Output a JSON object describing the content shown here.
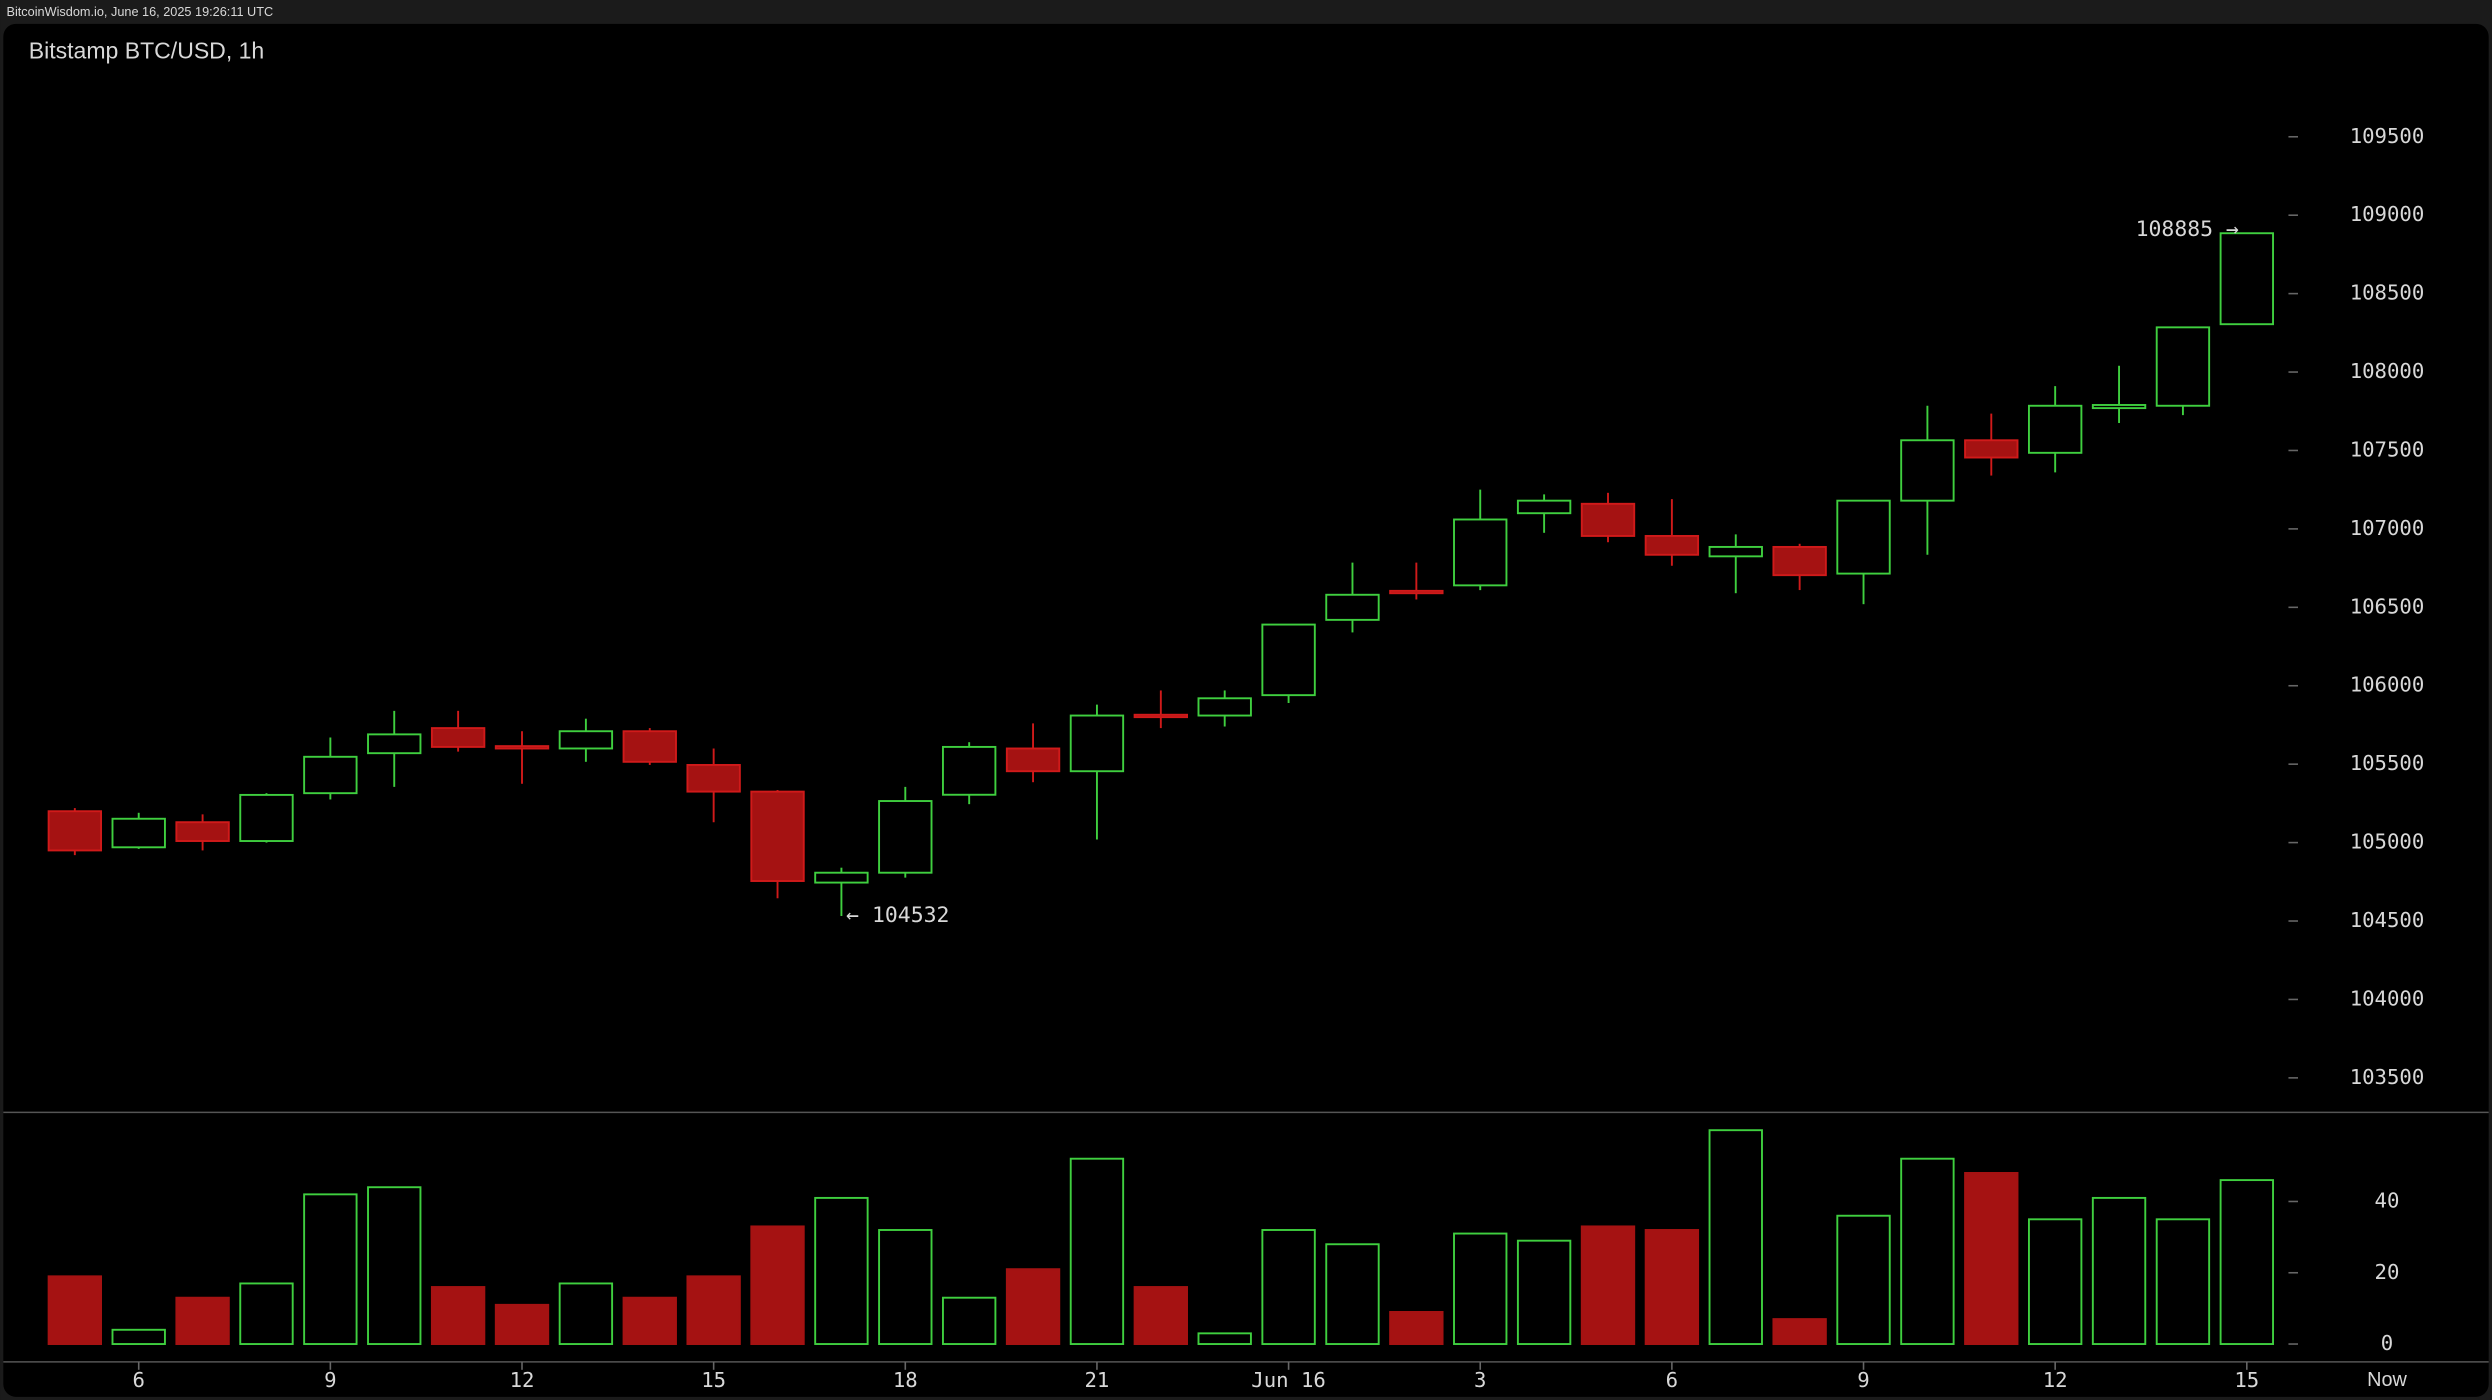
{
  "chart_data": {
    "type": "candlestick",
    "header": "BitcoinWisdom.io, June 16, 2025 19:26:11 UTC",
    "title": "Bitstamp BTC/USD, 1h",
    "categories": [
      null,
      "6",
      null,
      null,
      "9",
      null,
      null,
      "12",
      null,
      null,
      "15",
      null,
      null,
      "18",
      null,
      null,
      "21",
      null,
      null,
      "Jun 16",
      null,
      null,
      "3",
      null,
      null,
      "6",
      null,
      null,
      "9",
      null,
      null,
      "12",
      null,
      null,
      "15"
    ],
    "now_label": "Now",
    "open": [
      105200,
      104970,
      105130,
      105010,
      105315,
      105570,
      105730,
      105615,
      105600,
      105710,
      105495,
      105325,
      104745,
      104808,
      105305,
      105600,
      105455,
      105815,
      105810,
      105940,
      106420,
      106605,
      106640,
      107100,
      107160,
      106955,
      106825,
      106885,
      106715,
      107180,
      107565,
      107485,
      107770,
      107785,
      108305
    ],
    "high": [
      105220,
      105190,
      105180,
      105315,
      105670,
      105840,
      105840,
      105710,
      105790,
      105730,
      105600,
      105335,
      104840,
      105355,
      105640,
      105760,
      105880,
      105970,
      105970,
      106390,
      106785,
      106785,
      107250,
      107220,
      107230,
      107190,
      106965,
      106905,
      107180,
      107785,
      107735,
      107910,
      108040,
      108285,
      108885
    ],
    "low": [
      104920,
      104960,
      104950,
      105000,
      105275,
      105355,
      105580,
      105375,
      105515,
      105495,
      105130,
      104645,
      104532,
      104777,
      105245,
      105385,
      105020,
      105730,
      105740,
      105890,
      106340,
      106550,
      106610,
      106975,
      106915,
      106765,
      106590,
      106610,
      106520,
      106835,
      107340,
      107360,
      107675,
      107725,
      108305
    ],
    "close": [
      104950,
      105152,
      105010,
      105304,
      105547,
      105690,
      105610,
      105605,
      105710,
      105515,
      105325,
      104755,
      104808,
      105265,
      105610,
      105455,
      105810,
      105800,
      105920,
      106390,
      106580,
      106600,
      107060,
      107180,
      106955,
      106835,
      106885,
      106705,
      107180,
      107565,
      107455,
      107785,
      107790,
      108285,
      108885
    ],
    "volume": [
      19,
      4,
      13,
      17,
      42,
      44,
      16,
      11,
      17,
      13,
      19,
      33,
      41,
      32,
      13,
      21,
      52,
      16,
      3,
      32,
      28,
      9,
      31,
      29,
      33,
      32,
      60,
      7,
      36,
      52,
      48,
      35,
      41,
      35,
      46
    ],
    "ylim": [
      103280,
      110220
    ],
    "yticks": [
      103500,
      104000,
      104500,
      105000,
      105500,
      106000,
      106500,
      107000,
      107500,
      108000,
      108500,
      109000,
      109500
    ],
    "volume_ylim": [
      -5,
      65
    ],
    "volume_yticks": [
      0,
      20,
      40
    ],
    "low_label": "← 104532",
    "high_label": "108885 →",
    "up_color": "#3fcf3f",
    "down_color": "#a51212"
  }
}
